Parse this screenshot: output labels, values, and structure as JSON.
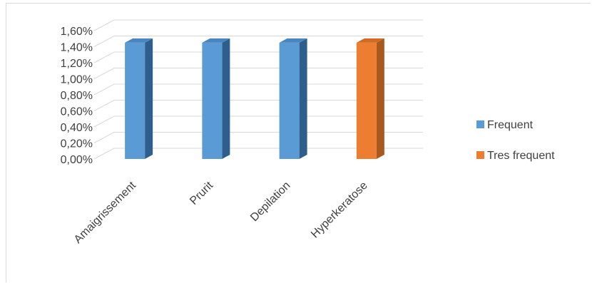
{
  "chart_data": {
    "type": "bar",
    "style": "3d-column",
    "categories": [
      "Amaigrissement",
      "Prurit",
      "Depilation",
      "Hyperkeratose"
    ],
    "series": [
      {
        "name": "Frequent",
        "values": [
          1.45,
          1.45,
          1.45,
          null
        ],
        "color": "#5b9bd5",
        "side_color": "#2e5f8c",
        "top_color": "#4a86bd"
      },
      {
        "name": "Tres frequent",
        "values": [
          null,
          null,
          null,
          1.45
        ],
        "color": "#ed7d31",
        "side_color": "#a85a1e",
        "top_color": "#d06a25"
      }
    ],
    "y_ticks": [
      "0,00%",
      "0,20%",
      "0,40%",
      "0,60%",
      "0,80%",
      "1,00%",
      "1,20%",
      "1,40%",
      "1,60%"
    ],
    "ylim": [
      0,
      1.6
    ],
    "grid": true,
    "legend": {
      "placement": "right",
      "items": [
        "Frequent",
        "Tres frequent"
      ]
    },
    "title": "",
    "xlabel": "",
    "ylabel": ""
  }
}
